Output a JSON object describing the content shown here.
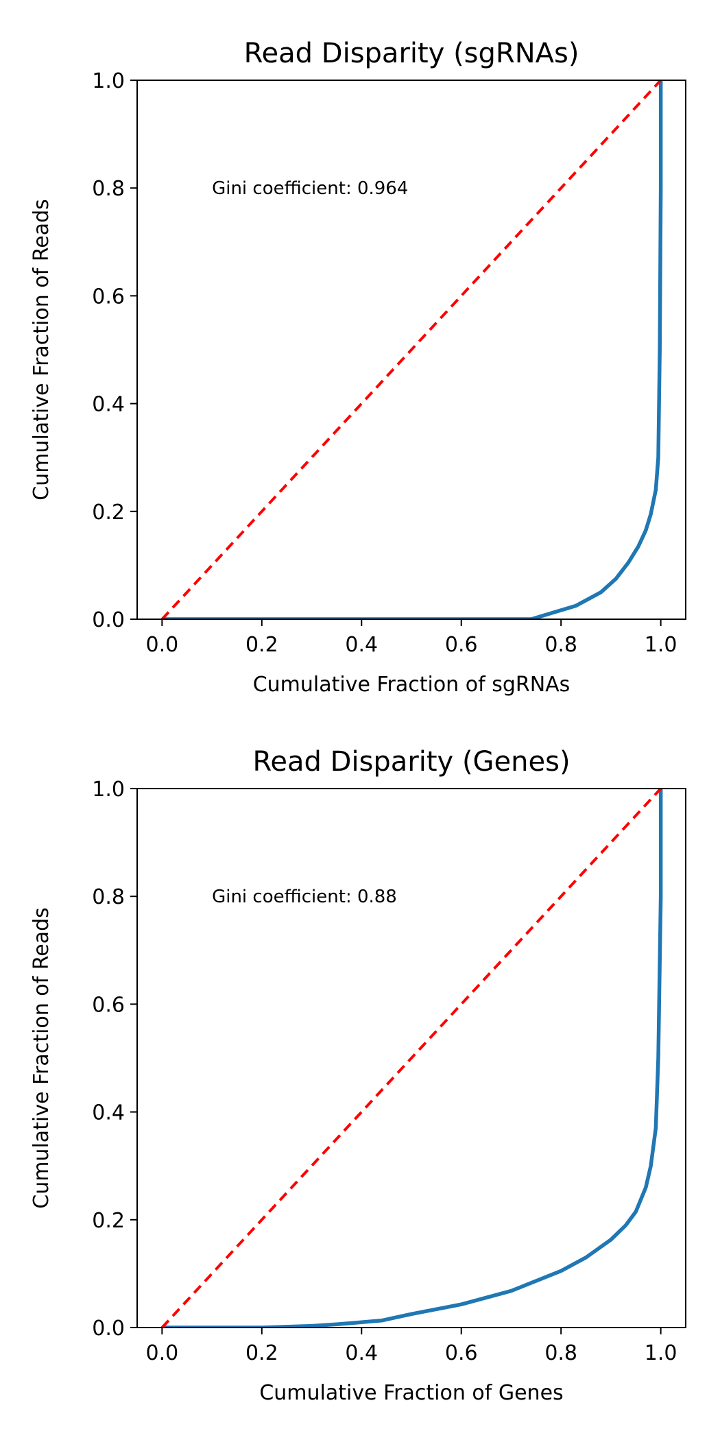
{
  "chart_data": [
    {
      "type": "line",
      "title": "Read Disparity (sgRNAs)",
      "xlabel": "Cumulative Fraction of sgRNAs",
      "ylabel": "Cumulative Fraction of Reads",
      "xlim": [
        -0.05,
        1.05
      ],
      "ylim": [
        0.0,
        1.0
      ],
      "xticks": [
        "0.0",
        "0.2",
        "0.4",
        "0.6",
        "0.8",
        "1.0"
      ],
      "yticks": [
        "0.0",
        "0.2",
        "0.4",
        "0.6",
        "0.8",
        "1.0"
      ],
      "grid": false,
      "annotation": {
        "text": "Gini coefficient: 0.964",
        "x": 0.1,
        "y": 0.8
      },
      "series": [
        {
          "color": "#1f77b4",
          "style": "solid",
          "x": [
            0.0,
            0.74,
            0.83,
            0.88,
            0.91,
            0.935,
            0.955,
            0.97,
            0.98,
            0.99,
            0.995,
            0.998,
            1.0,
            1.0
          ],
          "y": [
            0.0,
            0.0,
            0.025,
            0.05,
            0.075,
            0.105,
            0.135,
            0.165,
            0.195,
            0.24,
            0.3,
            0.5,
            0.8,
            1.0
          ]
        },
        {
          "color": "#ff0000",
          "style": "dashed",
          "x": [
            0.0,
            1.0
          ],
          "y": [
            0.0,
            1.0
          ]
        }
      ]
    },
    {
      "type": "line",
      "title": "Read Disparity (Genes)",
      "xlabel": "Cumulative Fraction of Genes",
      "ylabel": "Cumulative Fraction of Reads",
      "xlim": [
        -0.05,
        1.05
      ],
      "ylim": [
        0.0,
        1.0
      ],
      "xticks": [
        "0.0",
        "0.2",
        "0.4",
        "0.6",
        "0.8",
        "1.0"
      ],
      "yticks": [
        "0.0",
        "0.2",
        "0.4",
        "0.6",
        "0.8",
        "1.0"
      ],
      "grid": false,
      "annotation": {
        "text": "Gini coefficient: 0.88",
        "x": 0.1,
        "y": 0.8
      },
      "series": [
        {
          "color": "#1f77b4",
          "style": "solid",
          "x": [
            0.0,
            0.2,
            0.3,
            0.35,
            0.44,
            0.5,
            0.6,
            0.7,
            0.8,
            0.85,
            0.9,
            0.93,
            0.95,
            0.97,
            0.98,
            0.99,
            0.995,
            1.0,
            1.0
          ],
          "y": [
            0.0,
            0.0,
            0.003,
            0.006,
            0.013,
            0.025,
            0.043,
            0.068,
            0.105,
            0.13,
            0.163,
            0.19,
            0.215,
            0.26,
            0.3,
            0.37,
            0.5,
            0.8,
            1.0
          ]
        },
        {
          "color": "#ff0000",
          "style": "dashed",
          "x": [
            0.0,
            1.0
          ],
          "y": [
            0.0,
            1.0
          ]
        }
      ]
    }
  ]
}
